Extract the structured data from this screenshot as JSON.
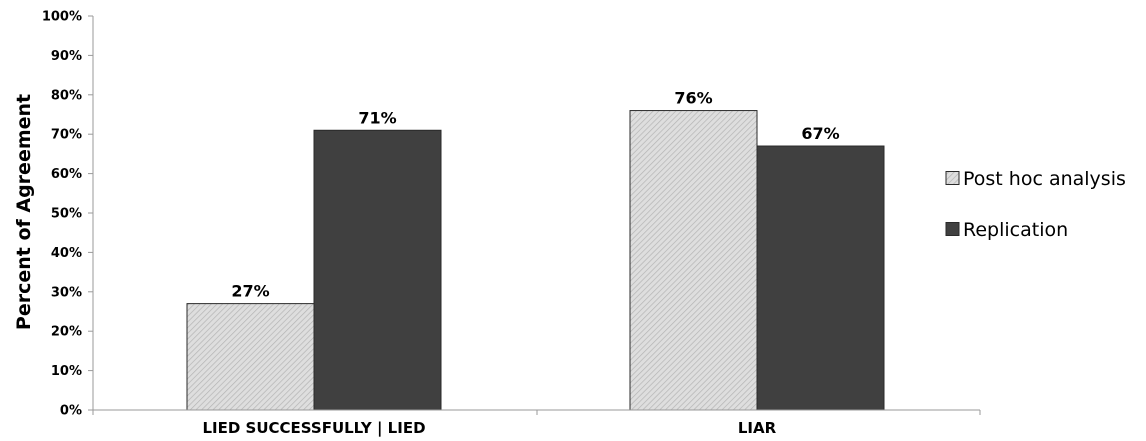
{
  "chart_data": {
    "type": "bar",
    "title": "",
    "xlabel": "",
    "ylabel": "Percent of Agreement",
    "categories": [
      "LIED SUCCESSFULLY | LIED",
      "LIAR"
    ],
    "series": [
      {
        "name": "Post hoc analysis",
        "values": [
          27,
          76
        ],
        "data_labels": [
          "27%",
          "76%"
        ],
        "color": "#d4d4d4",
        "pattern": "diagonal-hatch"
      },
      {
        "name": "Replication",
        "values": [
          71,
          67
        ],
        "data_labels": [
          "71%",
          "67%"
        ],
        "color": "#404040"
      }
    ],
    "ylim": [
      0,
      100
    ],
    "y_ticks": [
      0,
      10,
      20,
      30,
      40,
      50,
      60,
      70,
      80,
      90,
      100
    ],
    "y_tick_labels": [
      "0%",
      "10%",
      "20%",
      "30%",
      "40%",
      "50%",
      "60%",
      "70%",
      "80%",
      "90%",
      "100%"
    ],
    "grid": false,
    "legend_position": "right"
  }
}
